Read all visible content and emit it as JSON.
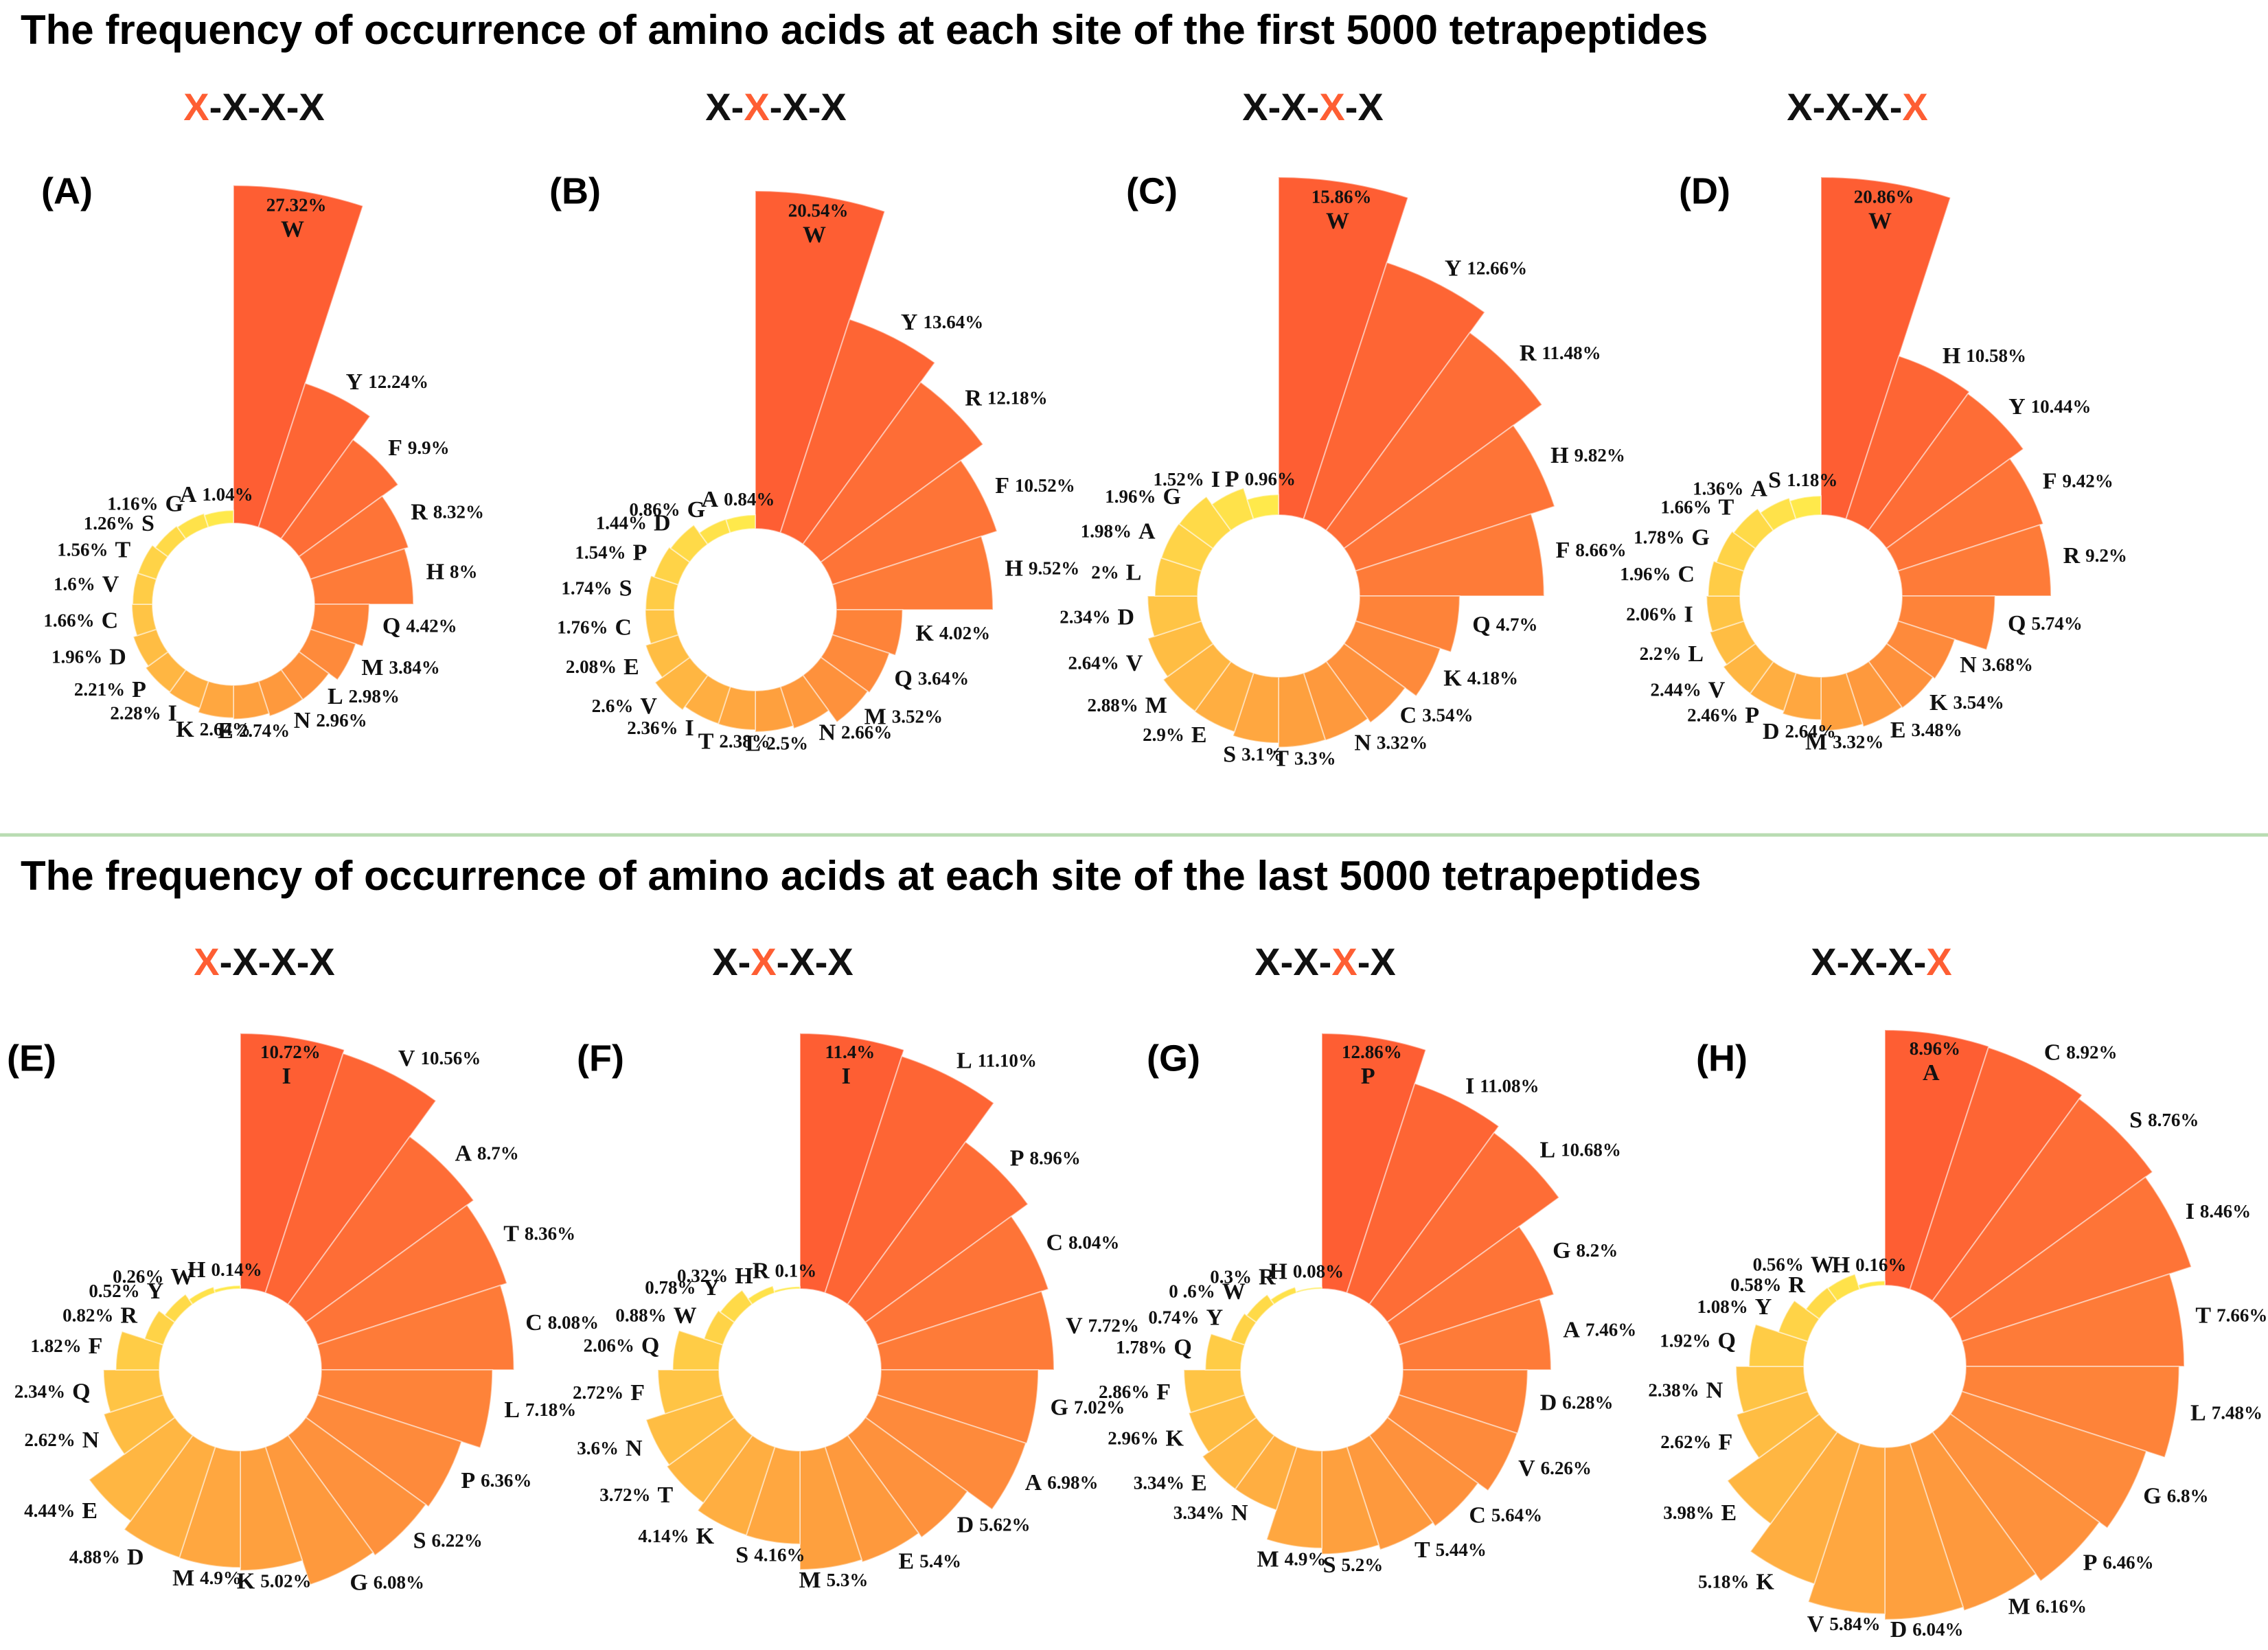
{
  "headings": [
    "The frequency of occurrence of amino acids at each site of the first 5000 tetrapeptides",
    "The frequency of occurrence of amino acids at each site of the last 5000 tetrapeptides"
  ],
  "chart_data": [
    {
      "type": "rose",
      "panel": "(A)",
      "title": "X-X-X-X",
      "highlight": 0,
      "color_range": [
        "#fe5e33",
        "#ffe94b"
      ],
      "categories": [
        "W",
        "Y",
        "F",
        "R",
        "H",
        "Q",
        "M",
        "L",
        "N",
        "E",
        "K",
        "I",
        "P",
        "D",
        "C",
        "V",
        "T",
        "S",
        "G",
        "A"
      ],
      "values": [
        27.32,
        12.24,
        9.9,
        8.32,
        8,
        4.42,
        3.84,
        2.98,
        2.96,
        2.74,
        2.64,
        2.28,
        2.21,
        1.96,
        1.66,
        1.6,
        1.56,
        1.26,
        1.16,
        1.04
      ],
      "value_labels": [
        "27.32%",
        "12.24%",
        "9.9%",
        "8.32%",
        "8%",
        "4.42%",
        "3.84%",
        "2.98%",
        "2.96%",
        "2.74%",
        "2.64%",
        "2.28%",
        "2.21%",
        "1.96%",
        "1.66%",
        "1.6%",
        "1.56%",
        "1.26%",
        "1.16%",
        "1.04%"
      ]
    },
    {
      "type": "rose",
      "panel": "(B)",
      "title": "X-X-X-X",
      "highlight": 1,
      "color_range": [
        "#fe5e33",
        "#ffe94b"
      ],
      "categories": [
        "W",
        "Y",
        "R",
        "F",
        "H",
        "K",
        "Q",
        "M",
        "N",
        "L",
        "T",
        "I",
        "V",
        "E",
        "C",
        "S",
        "P",
        "D",
        "G",
        "A"
      ],
      "values": [
        20.54,
        13.64,
        12.18,
        10.52,
        9.52,
        4.02,
        3.64,
        3.52,
        2.66,
        2.5,
        2.38,
        2.36,
        2.6,
        2.08,
        1.76,
        1.74,
        1.54,
        1.44,
        0.86,
        0.84
      ],
      "value_labels": [
        "20.54%",
        "13.64%",
        "12.18%",
        "10.52%",
        "9.52%",
        "4.02%",
        "3.64%",
        "3.52%",
        "2.66%",
        "2.5%",
        "2.38%",
        "2.36%",
        "2.6%",
        "2.08%",
        "1.76%",
        "1.74%",
        "1.54%",
        "1.44%",
        "0.86%",
        "0.84%"
      ]
    },
    {
      "type": "rose",
      "panel": "(C)",
      "title": "X-X-X-X",
      "highlight": 2,
      "color_range": [
        "#fe5e33",
        "#ffe94b"
      ],
      "categories": [
        "W",
        "Y",
        "R",
        "H",
        "F",
        "Q",
        "K",
        "C",
        "N",
        "T",
        "S",
        "E",
        "M",
        "V",
        "D",
        "L",
        "A",
        "G",
        "I",
        "P"
      ],
      "values": [
        15.86,
        12.66,
        11.48,
        9.82,
        8.66,
        4.7,
        4.18,
        3.54,
        3.32,
        3.3,
        3.1,
        2.9,
        2.88,
        2.64,
        2.34,
        2,
        1.98,
        1.96,
        1.52,
        0.96
      ],
      "value_labels": [
        "15.86%",
        "12.66%",
        "11.48%",
        "9.82%",
        "8.66%",
        "4.7%",
        "4.18%",
        "3.54%",
        "3.32%",
        "3.3%",
        "3.1%",
        "2.9%",
        "2.88%",
        "2.64%",
        "2.34%",
        "2%",
        "1.98%",
        "1.96%",
        "1.52%",
        "0.96%"
      ]
    },
    {
      "type": "rose",
      "panel": "(D)",
      "title": "X-X-X-X",
      "highlight": 3,
      "color_range": [
        "#fe5e33",
        "#ffe94b"
      ],
      "categories": [
        "W",
        "H",
        "Y",
        "F",
        "R",
        "Q",
        "N",
        "K",
        "E",
        "M",
        "D",
        "P",
        "V",
        "L",
        "I",
        "C",
        "G",
        "T",
        "A",
        "S"
      ],
      "values": [
        20.86,
        10.58,
        10.44,
        9.42,
        9.2,
        5.74,
        3.68,
        3.54,
        3.48,
        3.32,
        2.64,
        2.46,
        2.44,
        2.2,
        2.06,
        1.96,
        1.78,
        1.66,
        1.36,
        1.18
      ],
      "value_labels": [
        "20.86%",
        "10.58%",
        "10.44%",
        "9.42%",
        "9.2%",
        "5.74%",
        "3.68%",
        "3.54%",
        "3.48%",
        "3.32%",
        "2.64%",
        "2.46%",
        "2.44%",
        "2.2%",
        "2.06%",
        "1.96%",
        "1.78%",
        "1.66%",
        "1.36%",
        "1.18%"
      ]
    },
    {
      "type": "rose",
      "panel": "(E)",
      "title": "X-X-X-X",
      "highlight": 0,
      "color_range": [
        "#fe5e33",
        "#ffe94b"
      ],
      "categories": [
        "I",
        "V",
        "A",
        "T",
        "C",
        "L",
        "P",
        "S",
        "G",
        "K",
        "M",
        "D",
        "E",
        "N",
        "Q",
        "F",
        "R",
        "Y",
        "W",
        "H"
      ],
      "values": [
        10.72,
        10.56,
        8.7,
        8.36,
        8.08,
        7.18,
        6.36,
        6.22,
        6.08,
        5.02,
        4.9,
        4.88,
        4.44,
        2.62,
        2.34,
        1.82,
        0.82,
        0.52,
        0.26,
        0.14
      ],
      "value_labels": [
        "10.72%",
        "10.56%",
        "8.7%",
        "8.36%",
        "8.08%",
        "7.18%",
        "6.36%",
        "6.22%",
        "6.08%",
        "5.02%",
        "4.9%",
        "4.88%",
        "4.44%",
        "2.62%",
        "2.34%",
        "1.82%",
        "0.82%",
        "0.52%",
        "0.26%",
        "0.14%"
      ]
    },
    {
      "type": "rose",
      "panel": "(F)",
      "title": "X-X-X-X",
      "highlight": 1,
      "color_range": [
        "#fe5e33",
        "#ffe94b"
      ],
      "categories": [
        "I",
        "L",
        "P",
        "C",
        "V",
        "G",
        "A",
        "D",
        "E",
        "M",
        "S",
        "K",
        "T",
        "N",
        "F",
        "Q",
        "W",
        "Y",
        "H",
        "R"
      ],
      "values": [
        11.4,
        11.1,
        8.96,
        8.04,
        7.72,
        7.02,
        6.98,
        5.62,
        5.4,
        5.3,
        4.16,
        4.14,
        3.72,
        3.6,
        2.72,
        2.06,
        0.88,
        0.78,
        0.32,
        0.1
      ],
      "value_labels": [
        "11.4%",
        "11.10%",
        "8.96%",
        "8.04%",
        "7.72%",
        "7.02%",
        "6.98%",
        "5.62%",
        "5.4%",
        "5.3%",
        "4.16%",
        "4.14%",
        "3.72%",
        "3.6%",
        "2.72%",
        "2.06%",
        "0.88%",
        "0.78%",
        "0.32%",
        "0.1%"
      ]
    },
    {
      "type": "rose",
      "panel": "(G)",
      "title": "X-X-X-X",
      "highlight": 2,
      "color_range": [
        "#fe5e33",
        "#ffe94b"
      ],
      "categories": [
        "P",
        "I",
        "L",
        "G",
        "A",
        "D",
        "V",
        "C",
        "T",
        "S",
        "M",
        "N",
        "E",
        "K",
        "F",
        "Q",
        "Y",
        "W",
        "R",
        "H"
      ],
      "values": [
        12.86,
        11.08,
        10.68,
        8.2,
        7.46,
        6.28,
        6.26,
        5.64,
        5.44,
        5.2,
        4.9,
        3.34,
        3.34,
        2.96,
        2.86,
        1.78,
        0.74,
        0.6,
        0.3,
        0.08
      ],
      "value_labels": [
        "12.86%",
        "11.08%",
        "10.68%",
        "8.2%",
        "7.46%",
        "6.28%",
        "6.26%",
        "5.64%",
        "5.44%",
        "5.2%",
        "4.9%",
        "3.34%",
        "3.34%",
        "2.96%",
        "2.86%",
        "1.78%",
        "0.74%",
        "0 .6%",
        "0.3%",
        "0.08%"
      ]
    },
    {
      "type": "rose",
      "panel": "(H)",
      "title": "X-X-X-X",
      "highlight": 3,
      "color_range": [
        "#fe5e33",
        "#ffe94b"
      ],
      "categories": [
        "A",
        "C",
        "S",
        "I",
        "T",
        "L",
        "G",
        "P",
        "M",
        "D",
        "V",
        "K",
        "E",
        "F",
        "N",
        "Q",
        "Y",
        "R",
        "W",
        "H"
      ],
      "values": [
        8.96,
        8.92,
        8.76,
        8.46,
        7.66,
        7.48,
        6.8,
        6.46,
        6.16,
        6.04,
        5.84,
        5.18,
        3.98,
        2.62,
        2.38,
        1.92,
        1.08,
        0.58,
        0.56,
        0.16
      ],
      "value_labels": [
        "8.96%",
        "8.92%",
        "8.76%",
        "8.46%",
        "7.66%",
        "7.48%",
        "6.8%",
        "6.46%",
        "6.16%",
        "6.04%",
        "5.84%",
        "5.18%",
        "3.98%",
        "2.62%",
        "2.38%",
        "1.92%",
        "1.08%",
        "0.58%",
        "0.56%",
        "0.16%"
      ]
    }
  ]
}
